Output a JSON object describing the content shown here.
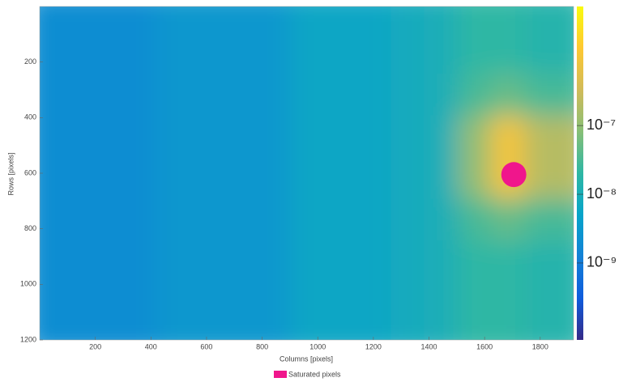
{
  "chart_data": {
    "type": "heatmap",
    "xlabel": "Columns [pixels]",
    "ylabel": "Rows [pixels]",
    "xlim": [
      0,
      1920
    ],
    "ylim": [
      0,
      1200
    ],
    "y_reversed": true,
    "xticks": [
      200,
      400,
      600,
      800,
      1000,
      1200,
      1400,
      1600,
      1800
    ],
    "yticks": [
      200,
      400,
      600,
      800,
      1000,
      1200
    ],
    "colorbar": {
      "log": true,
      "clim": [
        7.6e-11,
        5.4e-06
      ],
      "ticks": [
        {
          "value": 1e-09,
          "label": "10⁻⁹"
        },
        {
          "value": 1e-08,
          "label": "10⁻⁸"
        },
        {
          "value": 1e-07,
          "label": "10⁻⁷"
        }
      ]
    },
    "z": [
      [
        2e-09,
        2e-09,
        2e-09,
        2e-09,
        3e-09,
        3e-09,
        3e-09,
        3e-09,
        6e-09,
        6e-09,
        6e-09,
        8e-09,
        1e-08,
        2e-08,
        2e-08,
        1.5e-08
      ],
      [
        2e-09,
        2e-09,
        2e-09,
        2e-09,
        3e-09,
        3e-09,
        3e-09,
        3e-09,
        6e-09,
        6e-09,
        6e-09,
        8e-09,
        1e-08,
        2e-08,
        2e-08,
        1.5e-08
      ],
      [
        2e-09,
        2e-09,
        2e-09,
        2e-09,
        3e-09,
        3e-09,
        3e-09,
        3e-09,
        6e-09,
        6e-09,
        6e-09,
        8e-09,
        1e-08,
        3e-08,
        5e-08,
        3e-08
      ],
      [
        2e-09,
        2e-09,
        2e-09,
        2e-09,
        3e-09,
        3e-09,
        3e-09,
        3e-09,
        6e-09,
        6e-09,
        6e-09,
        8e-09,
        1e-08,
        1e-07,
        1e-06,
        2e-07
      ],
      [
        2e-09,
        2e-09,
        2e-09,
        2e-09,
        3e-09,
        3e-09,
        3e-09,
        3e-09,
        6e-09,
        6e-09,
        6e-09,
        8e-09,
        1e-08,
        1e-07,
        1e-06,
        2e-07
      ],
      [
        2e-09,
        2e-09,
        2e-09,
        2e-09,
        3e-09,
        3e-09,
        3e-09,
        3e-09,
        6e-09,
        6e-09,
        6e-09,
        8e-09,
        1e-08,
        3e-08,
        5e-08,
        3e-08
      ],
      [
        2e-09,
        2e-09,
        2e-09,
        2e-09,
        3e-09,
        3e-09,
        3e-09,
        3e-09,
        6e-09,
        6e-09,
        6e-09,
        8e-09,
        1e-08,
        2e-08,
        2e-08,
        1.5e-08
      ],
      [
        2e-09,
        2e-09,
        2e-09,
        2e-09,
        3e-09,
        3e-09,
        3e-09,
        3e-09,
        6e-09,
        6e-09,
        6e-09,
        8e-09,
        1e-08,
        2e-08,
        2e-08,
        1.5e-08
      ]
    ],
    "saturated": {
      "name": "Saturated pixels",
      "color": "#f0168c",
      "x": 1705,
      "y": 605,
      "r": 45
    }
  }
}
